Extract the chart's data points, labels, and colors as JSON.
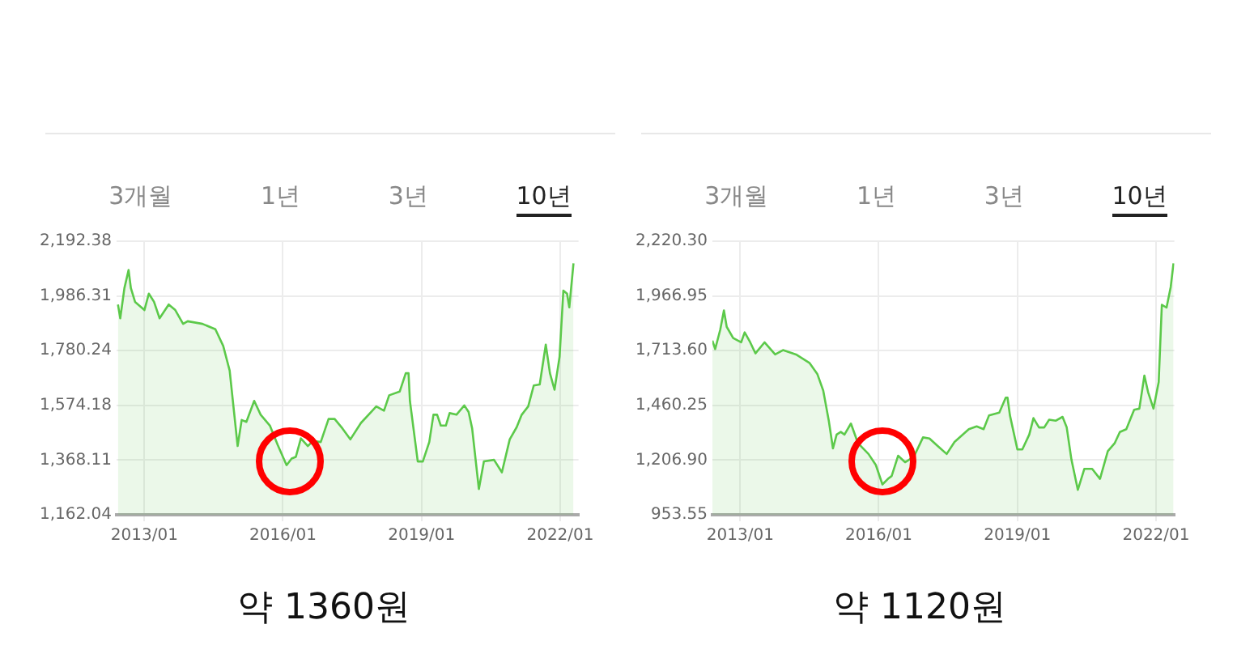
{
  "chart_data": [
    {
      "type": "area",
      "x": [
        "2012-06-06",
        "2012-06-24",
        "2012-07-27",
        "2012-08-29",
        "2012-09-16",
        "2012-10-19",
        "2013-01-01",
        "2013-02-05",
        "2013-03-18",
        "2013-05-01",
        "2013-07-12",
        "2013-09-02",
        "2013-11-03",
        "2013-12-09",
        "2014-04-05",
        "2014-07-16",
        "2014-09-16",
        "2014-11-06",
        "2015-01-08",
        "2015-02-09",
        "2015-03-18",
        "2015-05-19",
        "2015-07-09",
        "2015-09-20",
        "2015-11-21",
        "2016-01-30",
        "2016-03-10",
        "2016-04-12",
        "2016-05-22",
        "2016-07-16",
        "2016-08-25",
        "2016-10-26",
        "2016-12-27",
        "2017-02-13",
        "2017-04-16",
        "2017-06-17",
        "2017-09-09",
        "2018-01-08",
        "2018-03-10",
        "2018-04-20",
        "2018-07-12",
        "2018-08-29",
        "2018-09-20",
        "2018-10-01",
        "2018-12-02",
        "2019-01-11",
        "2019-03-03",
        "2019-04-05",
        "2019-05-04",
        "2019-06-02",
        "2019-07-12",
        "2019-08-11",
        "2019-10-04",
        "2019-12-05",
        "2020-01-08",
        "2020-02-05",
        "2020-03-29",
        "2020-05-08",
        "2020-07-27",
        "2020-09-27",
        "2020-11-28",
        "2021-01-22",
        "2021-03-03",
        "2021-04-23",
        "2021-06-06",
        "2021-07-23",
        "2021-09-09",
        "2021-10-12",
        "2021-11-17",
        "2021-12-27",
        "2022-01-26",
        "2022-02-24",
        "2022-03-14",
        "2022-04-16"
      ],
      "series": [
        {
          "color": "#5cc94a",
          "values": [
            1954,
            1902,
            2016,
            2084,
            2016,
            1964,
            1933,
            1995,
            1964,
            1902,
            1954,
            1933,
            1881,
            1891,
            1881,
            1861,
            1798,
            1705,
            1421,
            1519,
            1512,
            1591,
            1539,
            1498,
            1425,
            1349,
            1374,
            1380,
            1450,
            1421,
            1440,
            1436,
            1523,
            1523,
            1487,
            1446,
            1508,
            1570,
            1554,
            1612,
            1626,
            1695,
            1695,
            1591,
            1363,
            1363,
            1436,
            1539,
            1539,
            1498,
            1498,
            1545,
            1539,
            1574,
            1549,
            1487,
            1259,
            1363,
            1369,
            1322,
            1446,
            1492,
            1539,
            1570,
            1649,
            1653,
            1803,
            1695,
            1633,
            1757,
            2006,
            1995,
            1943,
            2109
          ]
        }
      ],
      "xlim": [
        "2012-05-26",
        "2022-05-26"
      ],
      "xticks": [
        {
          "value": "2013-01",
          "label": "2013/01"
        },
        {
          "value": "2016-01",
          "label": "2016/01"
        },
        {
          "value": "2019-01",
          "label": "2019/01"
        },
        {
          "value": "2022-01",
          "label": "2022/01"
        }
      ],
      "ylim": [
        1162.04,
        2192.38
      ],
      "yticks": [
        {
          "value": 1162.04,
          "label": "1,162.04"
        },
        {
          "value": 1368.11,
          "label": "1,368.11"
        },
        {
          "value": 1574.18,
          "label": "1,574.18"
        },
        {
          "value": 1780.24,
          "label": "1,780.24"
        },
        {
          "value": 1986.31,
          "label": "1,986.31"
        },
        {
          "value": 2192.38,
          "label": "2,192.38"
        }
      ],
      "grid": true,
      "annotations": [
        "3개월",
        "1년",
        "3년",
        "10년",
        "약 1360원"
      ]
    },
    {
      "type": "area",
      "x": [
        "2012-05-26",
        "2012-06-17",
        "2012-07-27",
        "2012-08-25",
        "2012-09-16",
        "2012-11-06",
        "2013-01-08",
        "2013-02-05",
        "2013-03-21",
        "2013-05-01",
        "2013-07-12",
        "2013-10-04",
        "2013-12-05",
        "2014-03-18",
        "2014-07-02",
        "2014-09-02",
        "2014-10-19",
        "2014-12-02",
        "2015-01-04",
        "2015-02-02",
        "2015-03-07",
        "2015-04-05",
        "2015-05-26",
        "2015-07-20",
        "2015-10-12",
        "2015-12-09",
        "2016-01-30",
        "2016-03-14",
        "2016-04-12",
        "2016-06-02",
        "2016-07-27",
        "2016-10-04",
        "2016-12-16",
        "2017-02-05",
        "2017-04-09",
        "2017-06-21",
        "2017-08-22",
        "2017-12-13",
        "2018-02-13",
        "2018-04-09",
        "2018-05-22",
        "2018-08-11",
        "2018-10-01",
        "2018-10-15",
        "2018-11-03",
        "2019-01-01",
        "2019-02-09",
        "2019-04-05",
        "2019-05-08",
        "2019-06-21",
        "2019-08-01",
        "2019-09-09",
        "2019-10-30",
        "2019-12-24",
        "2020-01-26",
        "2020-03-03",
        "2020-04-23",
        "2020-06-13",
        "2020-08-14",
        "2020-10-15",
        "2020-12-16",
        "2021-02-09",
        "2021-03-21",
        "2021-05-11",
        "2021-07-12",
        "2021-08-22",
        "2021-10-01",
        "2021-10-30",
        "2021-12-12",
        "2022-01-22",
        "2022-02-16",
        "2022-03-25",
        "2022-04-27",
        "2022-05-19"
      ],
      "series": [
        {
          "color": "#5cc94a",
          "values": [
            1760,
            1721,
            1811,
            1900,
            1824,
            1772,
            1752,
            1798,
            1752,
            1701,
            1752,
            1696,
            1716,
            1696,
            1657,
            1606,
            1529,
            1389,
            1261,
            1325,
            1337,
            1325,
            1376,
            1286,
            1235,
            1184,
            1094,
            1120,
            1133,
            1227,
            1197,
            1222,
            1312,
            1307,
            1273,
            1235,
            1291,
            1350,
            1363,
            1350,
            1414,
            1427,
            1496,
            1496,
            1414,
            1256,
            1256,
            1325,
            1401,
            1358,
            1358,
            1394,
            1389,
            1407,
            1358,
            1210,
            1069,
            1166,
            1166,
            1120,
            1248,
            1286,
            1337,
            1350,
            1440,
            1445,
            1598,
            1522,
            1445,
            1568,
            1926,
            1913,
            2008,
            2118
          ]
        }
      ],
      "xlim": [
        "2012-05-26",
        "2022-05-26"
      ],
      "xticks": [
        {
          "value": "2013-01",
          "label": "2013/01"
        },
        {
          "value": "2016-01",
          "label": "2016/01"
        },
        {
          "value": "2019-01",
          "label": "2019/01"
        },
        {
          "value": "2022-01",
          "label": "2022/01"
        }
      ],
      "ylim": [
        953.55,
        2220.3
      ],
      "yticks": [
        {
          "value": 953.55,
          "label": "953.55"
        },
        {
          "value": 1206.9,
          "label": "1,206.90"
        },
        {
          "value": 1460.25,
          "label": "1,460.25"
        },
        {
          "value": 1713.6,
          "label": "1,713.60"
        },
        {
          "value": 1966.95,
          "label": "1,966.95"
        },
        {
          "value": 2220.3,
          "label": "2,220.30"
        }
      ],
      "grid": true,
      "annotations": [
        "3개월",
        "1년",
        "3년",
        "10년",
        "약 1120원"
      ]
    }
  ]
}
